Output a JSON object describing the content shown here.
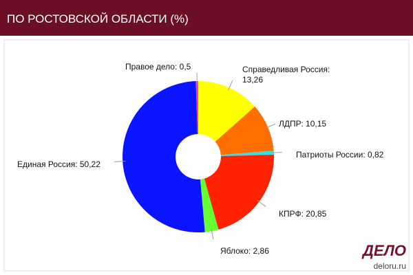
{
  "header": {
    "title": "ПО РОСТОВСКОЙ ОБЛАСТИ (%)"
  },
  "chart_data": {
    "type": "donut",
    "labels": [
      "Справедливая Россия: 13,26",
      "ЛДПР: 10,15",
      "Патриоты России: 0,82",
      "КПРФ: 20,85",
      "Яблоко: 2,86",
      "Единая Россия: 50,22",
      "Правое дело: 0,5"
    ],
    "values": [
      13.26,
      10.15,
      0.82,
      20.85,
      2.86,
      50.22,
      0.5
    ],
    "colors": [
      "#ffff00",
      "#ff6f00",
      "#33e0e8",
      "#ff2200",
      "#66ff33",
      "#0a14ff",
      "#ff33cc"
    ]
  },
  "watermark": {
    "logo": "ДЕЛО",
    "url": "deloru.ru"
  }
}
